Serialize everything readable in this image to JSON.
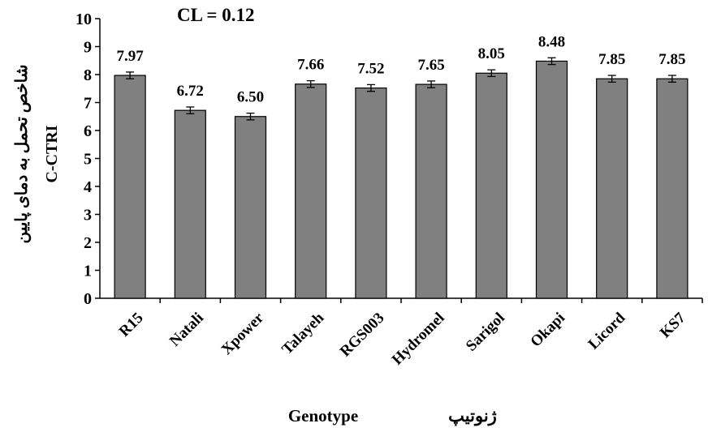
{
  "chart_data": {
    "type": "bar",
    "categories": [
      "R15",
      "Natali",
      "Xpower",
      "Talayeh",
      "RGS003",
      "Hydromel",
      "Sarigol",
      "Okapi",
      "Licord",
      "KS7"
    ],
    "values": [
      7.97,
      6.72,
      6.5,
      7.66,
      7.52,
      7.65,
      8.05,
      8.48,
      7.85,
      7.85
    ],
    "data_labels": [
      "7.97",
      "6.72",
      "6.50",
      "7.66",
      "7.52",
      "7.65",
      "8.05",
      "8.48",
      "7.85",
      "7.85"
    ],
    "error": 0.12,
    "annotation": "CL = 0.12",
    "ylabel_fa": "شاخص تحمل به دمای پایین",
    "ylabel_en": "C-CTRI",
    "xlabel_en": "Genotype",
    "xlabel_fa": "ژنوتیپ",
    "ylim": [
      0,
      10
    ],
    "yticks": [
      "0",
      "1",
      "2",
      "3",
      "4",
      "5",
      "6",
      "7",
      "8",
      "9",
      "10"
    ],
    "grid": false,
    "bar_color": "#808080"
  }
}
